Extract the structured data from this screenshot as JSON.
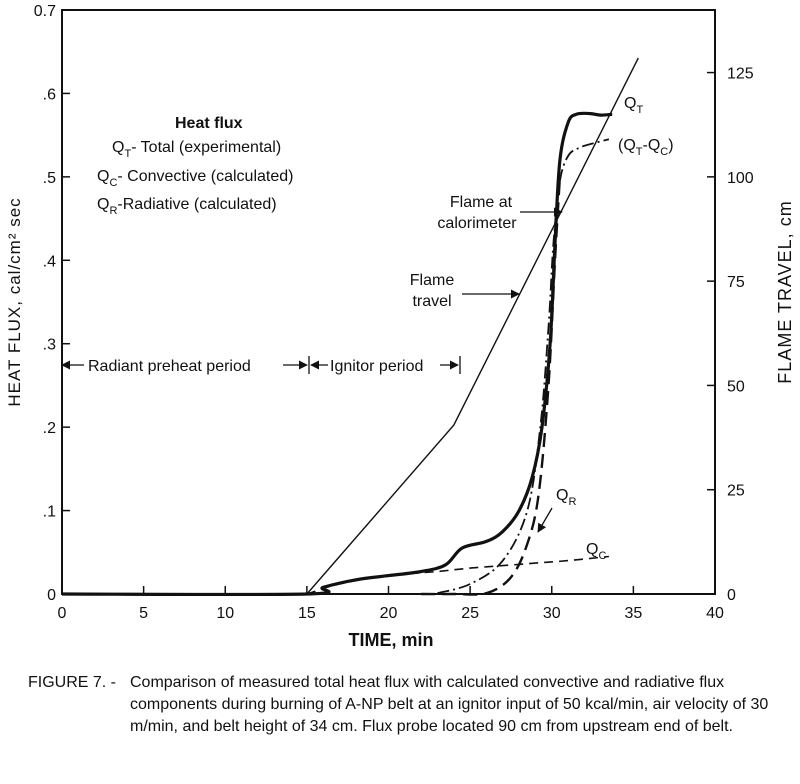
{
  "chart_data": {
    "type": "line",
    "xlabel": "TIME, min",
    "ylabel_left": "HEAT FLUX, cal/cm² sec",
    "ylabel_right": "FLAME TRAVEL, cm",
    "xlim": [
      0,
      40
    ],
    "ylim_left": [
      0,
      0.7
    ],
    "ylim_right": [
      0,
      140
    ],
    "x_ticks": [
      "0",
      "5",
      "10",
      "15",
      "20",
      "25",
      "30",
      "35",
      "40"
    ],
    "y_ticks_left": [
      "0",
      ".1",
      ".2",
      ".3",
      ".4",
      ".5",
      ".6",
      "0.7"
    ],
    "y_ticks_right": [
      "0",
      "25",
      "50",
      "75",
      "100",
      "125"
    ],
    "grid": false,
    "legend": {
      "title": "Heat flux",
      "entries": [
        {
          "sym": "Q",
          "sub": "T",
          "text": "- Total (experimental)"
        },
        {
          "sym": "Q",
          "sub": "C",
          "text": "- Convective (calculated)"
        },
        {
          "sym": "Q",
          "sub": "R",
          "text": "-Radiative (calculated)"
        }
      ]
    },
    "series": [
      {
        "label": "QT",
        "axis": "left",
        "style": "solid-thick",
        "x": [
          0,
          15,
          16,
          18,
          20,
          22,
          23.5,
          24.5,
          26,
          27,
          28,
          28.8,
          29.4,
          29.9,
          30.2,
          30.5,
          31.0,
          31.5,
          32.3,
          33.0,
          33.7
        ],
        "y": [
          0,
          0,
          0.008,
          0.017,
          0.022,
          0.027,
          0.035,
          0.055,
          0.063,
          0.075,
          0.1,
          0.14,
          0.2,
          0.3,
          0.42,
          0.52,
          0.565,
          0.575,
          0.576,
          0.574,
          0.575
        ]
      },
      {
        "label": "QC",
        "axis": "left",
        "style": "dashed",
        "x": [
          15,
          17,
          20,
          23,
          25,
          27,
          29,
          31,
          33.5
        ],
        "y": [
          0,
          0.012,
          0.022,
          0.027,
          0.031,
          0.034,
          0.037,
          0.04,
          0.045
        ]
      },
      {
        "label": "QR",
        "axis": "left",
        "style": "long-dash",
        "x": [
          22,
          24,
          26,
          27.5,
          28.5,
          29.2,
          29.8,
          30.2,
          30.5
        ],
        "y": [
          0,
          0,
          0.001,
          0.02,
          0.06,
          0.12,
          0.25,
          0.4,
          0.5
        ]
      },
      {
        "label": "(QT-QC)",
        "axis": "left",
        "style": "dash-dot",
        "x": [
          23,
          25,
          27,
          28.5,
          29.3,
          29.8,
          30.1,
          30.5,
          31.0,
          31.7,
          32.5,
          33.5
        ],
        "y": [
          0.001,
          0.012,
          0.04,
          0.1,
          0.2,
          0.32,
          0.42,
          0.495,
          0.525,
          0.535,
          0.54,
          0.545
        ]
      },
      {
        "label": "Flame travel",
        "axis": "right",
        "style": "solid-thin",
        "x": [
          15,
          24,
          35.3
        ],
        "y": [
          0,
          40.5,
          128.5
        ]
      }
    ],
    "annotations": {
      "flame_travel": [
        "Flame",
        "travel"
      ],
      "flame_calorimeter": [
        "Flame at",
        "calorimeter"
      ],
      "qt_label": {
        "sym": "Q",
        "sub": "T"
      },
      "qtqc_label": {
        "open": "(Q",
        "sub1": "T",
        "mid": "-Q",
        "sub2": "C",
        "close": ")"
      },
      "qr_label": {
        "sym": "Q",
        "sub": "R"
      },
      "qc_label": {
        "sym": "Q",
        "sub": "C"
      },
      "radiant_preheat": "Radiant preheat period",
      "ignitor_period": "Ignitor period"
    }
  },
  "caption": {
    "label": "FIGURE 7. -",
    "text": "Comparison of measured total heat flux with calculated convective and radiative flux components during burning of A-NP belt at an ignitor input of 50 kcal/min, air velocity of 30 m/min, and belt height of 34 cm. Flux probe located 90 cm from upstream end of belt."
  }
}
